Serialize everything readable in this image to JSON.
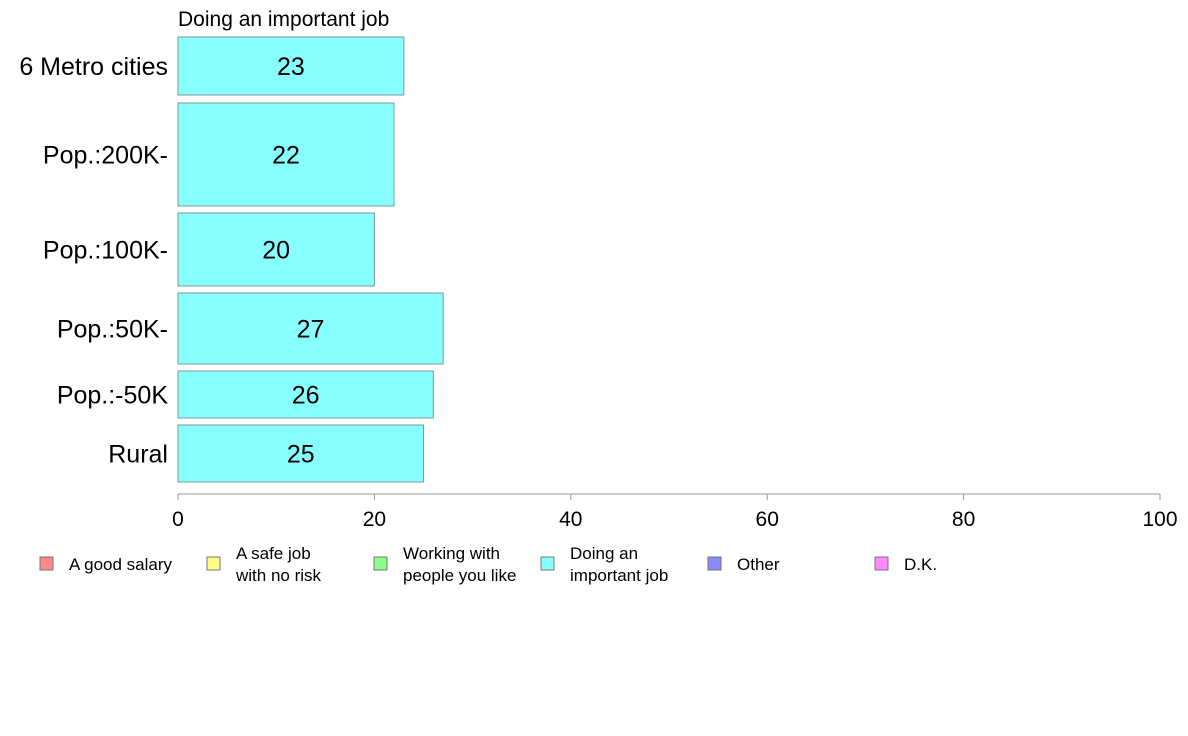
{
  "chart_data": {
    "type": "bar",
    "orientation": "horizontal",
    "title": "Doing an important job",
    "categories": [
      "6 Metro cities",
      "Pop.:200K-",
      "Pop.:100K-",
      "Pop.:50K-",
      "Pop.:-50K",
      "Rural"
    ],
    "series": [
      {
        "name": "Doing an important job",
        "values": [
          23,
          22,
          20,
          27,
          26,
          25
        ],
        "color": "#88ffff"
      }
    ],
    "xlim": [
      0,
      100
    ],
    "xticks": [
      0,
      20,
      40,
      60,
      80,
      100
    ],
    "grid": false,
    "legend_position": "bottom",
    "legend": [
      {
        "label": "A good salary",
        "color": "#ff8888"
      },
      {
        "label": "A safe job\nwith no risk",
        "color": "#ffff88"
      },
      {
        "label": "Working with\npeople you like",
        "color": "#88ff88"
      },
      {
        "label": "Doing an\nimportant job",
        "color": "#88ffff"
      },
      {
        "label": "Other",
        "color": "#8888ff"
      },
      {
        "label": "D.K.",
        "color": "#ff88ff"
      }
    ]
  }
}
